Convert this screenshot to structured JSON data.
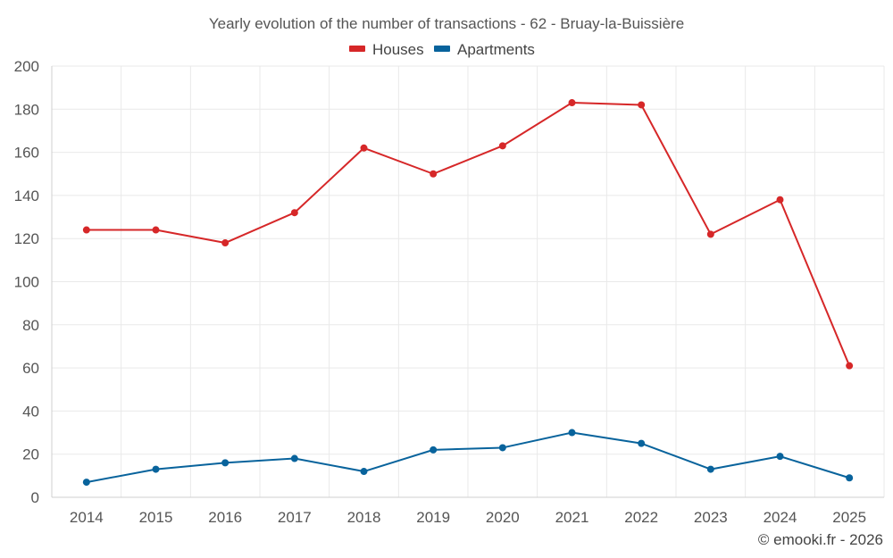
{
  "chart_data": {
    "type": "line",
    "title": "Yearly evolution of the number of transactions - 62 - Bruay-la-Buissière",
    "xlabel": "",
    "ylabel": "",
    "categories": [
      "2014",
      "2015",
      "2016",
      "2017",
      "2018",
      "2019",
      "2020",
      "2021",
      "2022",
      "2023",
      "2024",
      "2025"
    ],
    "ylim": [
      0,
      200
    ],
    "yticks": [
      0,
      20,
      40,
      60,
      80,
      100,
      120,
      140,
      160,
      180,
      200
    ],
    "grid": true,
    "legend_position": "top-center",
    "series": [
      {
        "name": "Houses",
        "color": "#d62728",
        "values": [
          124,
          124,
          118,
          132,
          162,
          150,
          163,
          183,
          182,
          122,
          138,
          61
        ]
      },
      {
        "name": "Apartments",
        "color": "#08639c",
        "values": [
          7,
          13,
          16,
          18,
          12,
          22,
          23,
          30,
          25,
          13,
          19,
          9
        ]
      }
    ]
  },
  "credit": "© emooki.fr - 2026"
}
